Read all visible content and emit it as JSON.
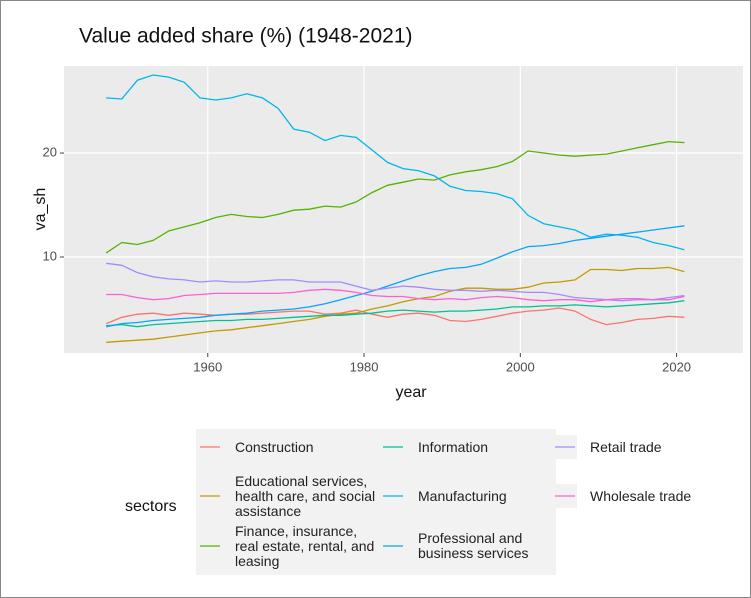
{
  "chart_data": {
    "type": "line",
    "title": "Value added share (%) (1948-2021)",
    "x_label": "year",
    "y_label": "va_sh",
    "legend_title": "sectors",
    "xlim": [
      1941.6,
      2028.5
    ],
    "xticks": [
      1960,
      1980,
      2000,
      2020
    ],
    "ylim": [
      0.77,
      28.37
    ],
    "yticks": [
      10,
      20
    ],
    "grid": true,
    "x": [
      1947,
      1949,
      1951,
      1953,
      1955,
      1957,
      1959,
      1961,
      1963,
      1965,
      1967,
      1969,
      1971,
      1973,
      1975,
      1977,
      1979,
      1981,
      1983,
      1985,
      1987,
      1989,
      1991,
      1993,
      1995,
      1997,
      1999,
      2001,
      2003,
      2005,
      2007,
      2009,
      2011,
      2013,
      2015,
      2017,
      2019,
      2021
    ],
    "series": [
      {
        "name": "Construction",
        "color": "#F8766D",
        "values": [
          3.6,
          4.2,
          4.5,
          4.6,
          4.4,
          4.6,
          4.5,
          4.4,
          4.5,
          4.5,
          4.6,
          4.7,
          4.8,
          4.8,
          4.5,
          4.6,
          4.9,
          4.5,
          4.2,
          4.5,
          4.6,
          4.4,
          3.9,
          3.8,
          4.0,
          4.3,
          4.6,
          4.8,
          4.9,
          5.1,
          4.8,
          4.0,
          3.5,
          3.7,
          4.0,
          4.1,
          4.3,
          4.2
        ]
      },
      {
        "name": "Educational services, health care, and social assistance",
        "color": "#C49A00",
        "values": [
          1.8,
          1.9,
          2.0,
          2.1,
          2.3,
          2.5,
          2.7,
          2.9,
          3.0,
          3.2,
          3.4,
          3.6,
          3.8,
          4.0,
          4.3,
          4.5,
          4.6,
          5.0,
          5.3,
          5.7,
          6.0,
          6.2,
          6.7,
          7.0,
          7.0,
          6.9,
          6.9,
          7.1,
          7.5,
          7.6,
          7.8,
          8.8,
          8.8,
          8.7,
          8.9,
          8.9,
          9.0,
          8.6
        ]
      },
      {
        "name": "Finance, insurance, real estate, rental, and leasing",
        "color": "#53B400",
        "values": [
          10.4,
          11.4,
          11.2,
          11.6,
          12.5,
          12.9,
          13.3,
          13.8,
          14.1,
          13.9,
          13.8,
          14.1,
          14.5,
          14.6,
          14.9,
          14.8,
          15.3,
          16.2,
          16.9,
          17.2,
          17.5,
          17.4,
          17.9,
          18.2,
          18.4,
          18.7,
          19.2,
          20.2,
          20.0,
          19.8,
          19.7,
          19.8,
          19.9,
          20.2,
          20.5,
          20.8,
          21.1,
          21.0
        ]
      },
      {
        "name": "Information",
        "color": "#00C094",
        "values": [
          3.4,
          3.5,
          3.3,
          3.5,
          3.6,
          3.7,
          3.8,
          3.9,
          3.9,
          4.0,
          4.0,
          4.1,
          4.2,
          4.3,
          4.4,
          4.4,
          4.5,
          4.6,
          4.8,
          4.9,
          4.8,
          4.7,
          4.8,
          4.8,
          4.9,
          5.0,
          5.2,
          5.2,
          5.3,
          5.3,
          5.4,
          5.3,
          5.2,
          5.3,
          5.4,
          5.5,
          5.6,
          5.8
        ]
      },
      {
        "name": "Manufacturing",
        "color": "#00B6EB",
        "values": [
          25.3,
          25.2,
          27.0,
          27.5,
          27.3,
          26.8,
          25.3,
          25.1,
          25.3,
          25.7,
          25.3,
          24.3,
          22.3,
          22.0,
          21.2,
          21.7,
          21.5,
          20.3,
          19.1,
          18.5,
          18.3,
          17.8,
          16.8,
          16.4,
          16.3,
          16.1,
          15.6,
          14.0,
          13.2,
          12.9,
          12.6,
          11.9,
          12.2,
          12.1,
          11.9,
          11.4,
          11.1,
          10.7
        ]
      },
      {
        "name": "Professional and business services",
        "color": "#06A4FF",
        "values": [
          3.3,
          3.6,
          3.7,
          3.9,
          4.0,
          4.1,
          4.2,
          4.4,
          4.5,
          4.6,
          4.8,
          4.9,
          5.0,
          5.2,
          5.5,
          5.9,
          6.3,
          6.7,
          7.2,
          7.7,
          8.2,
          8.6,
          8.9,
          9.0,
          9.3,
          9.9,
          10.5,
          11.0,
          11.1,
          11.3,
          11.6,
          11.8,
          12.0,
          12.2,
          12.4,
          12.6,
          12.8,
          13.0
        ]
      },
      {
        "name": "Retail trade",
        "color": "#A58AFF",
        "values": [
          9.4,
          9.2,
          8.5,
          8.1,
          7.9,
          7.8,
          7.6,
          7.7,
          7.6,
          7.6,
          7.7,
          7.8,
          7.8,
          7.6,
          7.6,
          7.6,
          7.2,
          6.8,
          7.0,
          7.2,
          7.1,
          6.9,
          6.8,
          6.8,
          6.7,
          6.8,
          6.7,
          6.6,
          6.6,
          6.4,
          6.1,
          6.0,
          5.9,
          5.8,
          5.9,
          5.9,
          6.1,
          6.3
        ]
      },
      {
        "name": "Wholesale trade",
        "color": "#FB61D7",
        "values": [
          6.4,
          6.4,
          6.1,
          5.9,
          6.0,
          6.3,
          6.4,
          6.5,
          6.5,
          6.5,
          6.5,
          6.5,
          6.6,
          6.8,
          6.9,
          6.8,
          6.6,
          6.3,
          6.2,
          6.2,
          6.0,
          5.9,
          6.0,
          5.9,
          6.1,
          6.2,
          6.1,
          5.9,
          5.8,
          5.9,
          5.9,
          5.7,
          5.9,
          6.0,
          6.0,
          5.9,
          5.9,
          6.2
        ]
      }
    ]
  }
}
